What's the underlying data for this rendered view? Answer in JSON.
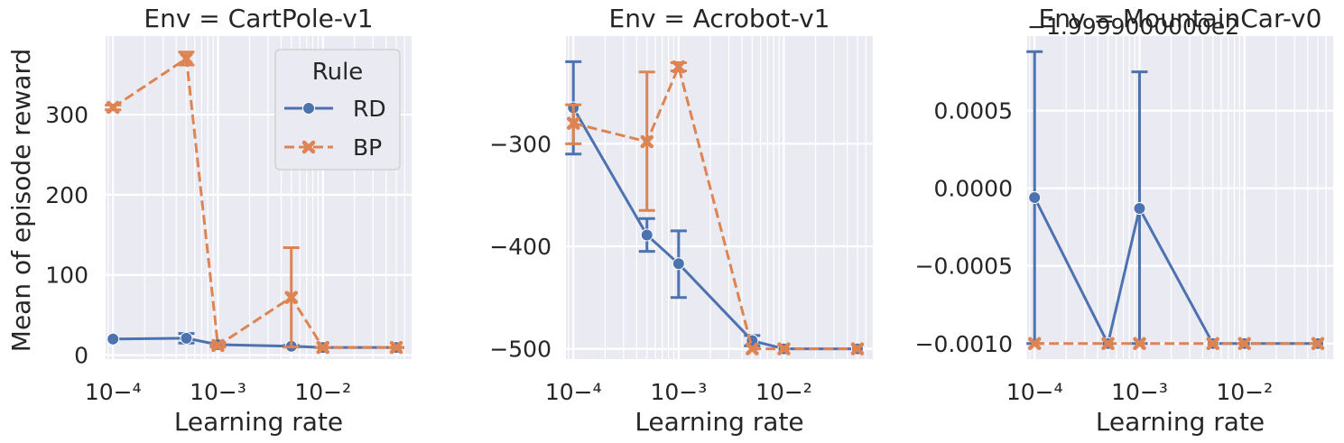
{
  "figure": {
    "ylabel": "Mean of episode reward",
    "xlabel": "Learning rate"
  },
  "legend": {
    "title": "Rule",
    "entries": [
      "RD",
      "BP"
    ]
  },
  "colors": {
    "background": "#eaeaf2",
    "grid": "#ffffff",
    "text": "#262626",
    "rd": "#4c72b0",
    "bp": "#dd8452"
  },
  "chart_data": [
    {
      "type": "line",
      "title": "Env = CartPole-v1",
      "xlabel": "Learning rate",
      "ylabel": "Mean of episode reward",
      "xscale": "log",
      "grid": true,
      "legend_position": "top-right",
      "xlim": [
        8.5e-05,
        0.07
      ],
      "ylim": [
        -5,
        398
      ],
      "xticks": [
        0.0001,
        0.001,
        0.01
      ],
      "xtick_labels": [
        "10^-4",
        "10^-3",
        "10^-2"
      ],
      "yticks": [
        0,
        100,
        200,
        300
      ],
      "ytick_labels": [
        "0",
        "100",
        "200",
        "300"
      ],
      "series": [
        {
          "name": "RD",
          "marker": "circle",
          "dash": false,
          "x": [
            0.0001,
            0.0005,
            0.001,
            0.005,
            0.01,
            0.05
          ],
          "y": [
            20,
            21,
            13,
            11,
            9.5,
            9.5
          ],
          "err": [
            [
              20,
              20
            ],
            [
              15,
              27
            ],
            [
              11,
              15
            ],
            [
              10,
              12
            ],
            [
              9.3,
              9.7
            ],
            [
              9.3,
              9.7
            ]
          ]
        },
        {
          "name": "BP",
          "marker": "x",
          "dash": true,
          "x": [
            0.0001,
            0.0005,
            0.001,
            0.005,
            0.01,
            0.05
          ],
          "y": [
            309,
            370,
            12,
            72,
            9.5,
            9.5
          ],
          "err": [
            [
              306,
              312
            ],
            [
              362,
              378
            ],
            [
              10,
              14
            ],
            [
              10,
              134
            ],
            [
              9.3,
              9.7
            ],
            [
              9.3,
              9.7
            ]
          ]
        }
      ]
    },
    {
      "type": "line",
      "title": "Env = Acrobot-v1",
      "xlabel": "Learning rate",
      "ylabel": "",
      "xscale": "log",
      "grid": true,
      "xlim": [
        8.5e-05,
        0.07
      ],
      "ylim": [
        -510,
        -195
      ],
      "xticks": [
        0.0001,
        0.001,
        0.01
      ],
      "xtick_labels": [
        "10^-4",
        "10^-3",
        "10^-2"
      ],
      "yticks": [
        -500,
        -400,
        -300
      ],
      "ytick_labels": [
        "−500",
        "−400",
        "−300"
      ],
      "series": [
        {
          "name": "RD",
          "marker": "circle",
          "dash": false,
          "x": [
            0.0001,
            0.0005,
            0.001,
            0.005,
            0.01,
            0.05
          ],
          "y": [
            -265,
            -389,
            -417,
            -492,
            -500,
            -500
          ],
          "err": [
            [
              -310,
              -220
            ],
            [
              -405,
              -373
            ],
            [
              -450,
              -385
            ],
            [
              -497,
              -487
            ],
            [
              -500,
              -500
            ],
            [
              -500,
              -500
            ]
          ]
        },
        {
          "name": "BP",
          "marker": "x",
          "dash": true,
          "x": [
            0.0001,
            0.0005,
            0.001,
            0.005,
            0.01,
            0.05
          ],
          "y": [
            -280,
            -298,
            -225,
            -500,
            -500,
            -500
          ],
          "err": [
            [
              -300,
              -262
            ],
            [
              -365,
              -230
            ],
            [
              -229,
              -221
            ],
            [
              -500,
              -500
            ],
            [
              -500,
              -500
            ],
            [
              -500,
              -500
            ]
          ]
        }
      ]
    },
    {
      "type": "line",
      "title": "Env = MountainCar-v0",
      "offset_text": "−1.9999000000e2",
      "xlabel": "Learning rate",
      "ylabel": "",
      "xscale": "log",
      "grid": true,
      "xlim": [
        8.5e-05,
        0.07
      ],
      "ylim": [
        -0.0011,
        0.00098
      ],
      "xticks": [
        0.0001,
        0.001,
        0.01
      ],
      "xtick_labels": [
        "10^-4",
        "10^-3",
        "10^-2"
      ],
      "yticks": [
        -0.001,
        -0.0005,
        0,
        0.0005
      ],
      "ytick_labels": [
        "−0.0010",
        "−0.0005",
        "0.0000",
        "0.0005"
      ],
      "series": [
        {
          "name": "RD",
          "marker": "circle",
          "dash": false,
          "x": [
            0.0001,
            0.0005,
            0.001,
            0.005,
            0.01,
            0.05
          ],
          "y": [
            -6e-05,
            -0.001,
            -0.00013,
            -0.001,
            -0.001,
            -0.001
          ],
          "err": [
            [
              -0.001,
              0.00088
            ],
            [
              -0.001,
              -0.001
            ],
            [
              -0.001,
              0.00075
            ],
            [
              -0.001,
              -0.001
            ],
            [
              -0.001,
              -0.001
            ],
            [
              -0.001,
              -0.001
            ]
          ]
        },
        {
          "name": "BP",
          "marker": "x",
          "dash": true,
          "x": [
            0.0001,
            0.0005,
            0.001,
            0.005,
            0.01,
            0.05
          ],
          "y": [
            -0.001,
            -0.001,
            -0.001,
            -0.001,
            -0.001,
            -0.001
          ],
          "err": [
            [
              -0.001,
              -0.001
            ],
            [
              -0.001,
              -0.001
            ],
            [
              -0.001,
              -0.001
            ],
            [
              -0.001,
              -0.001
            ],
            [
              -0.001,
              -0.001
            ],
            [
              -0.001,
              -0.001
            ]
          ]
        }
      ]
    }
  ]
}
